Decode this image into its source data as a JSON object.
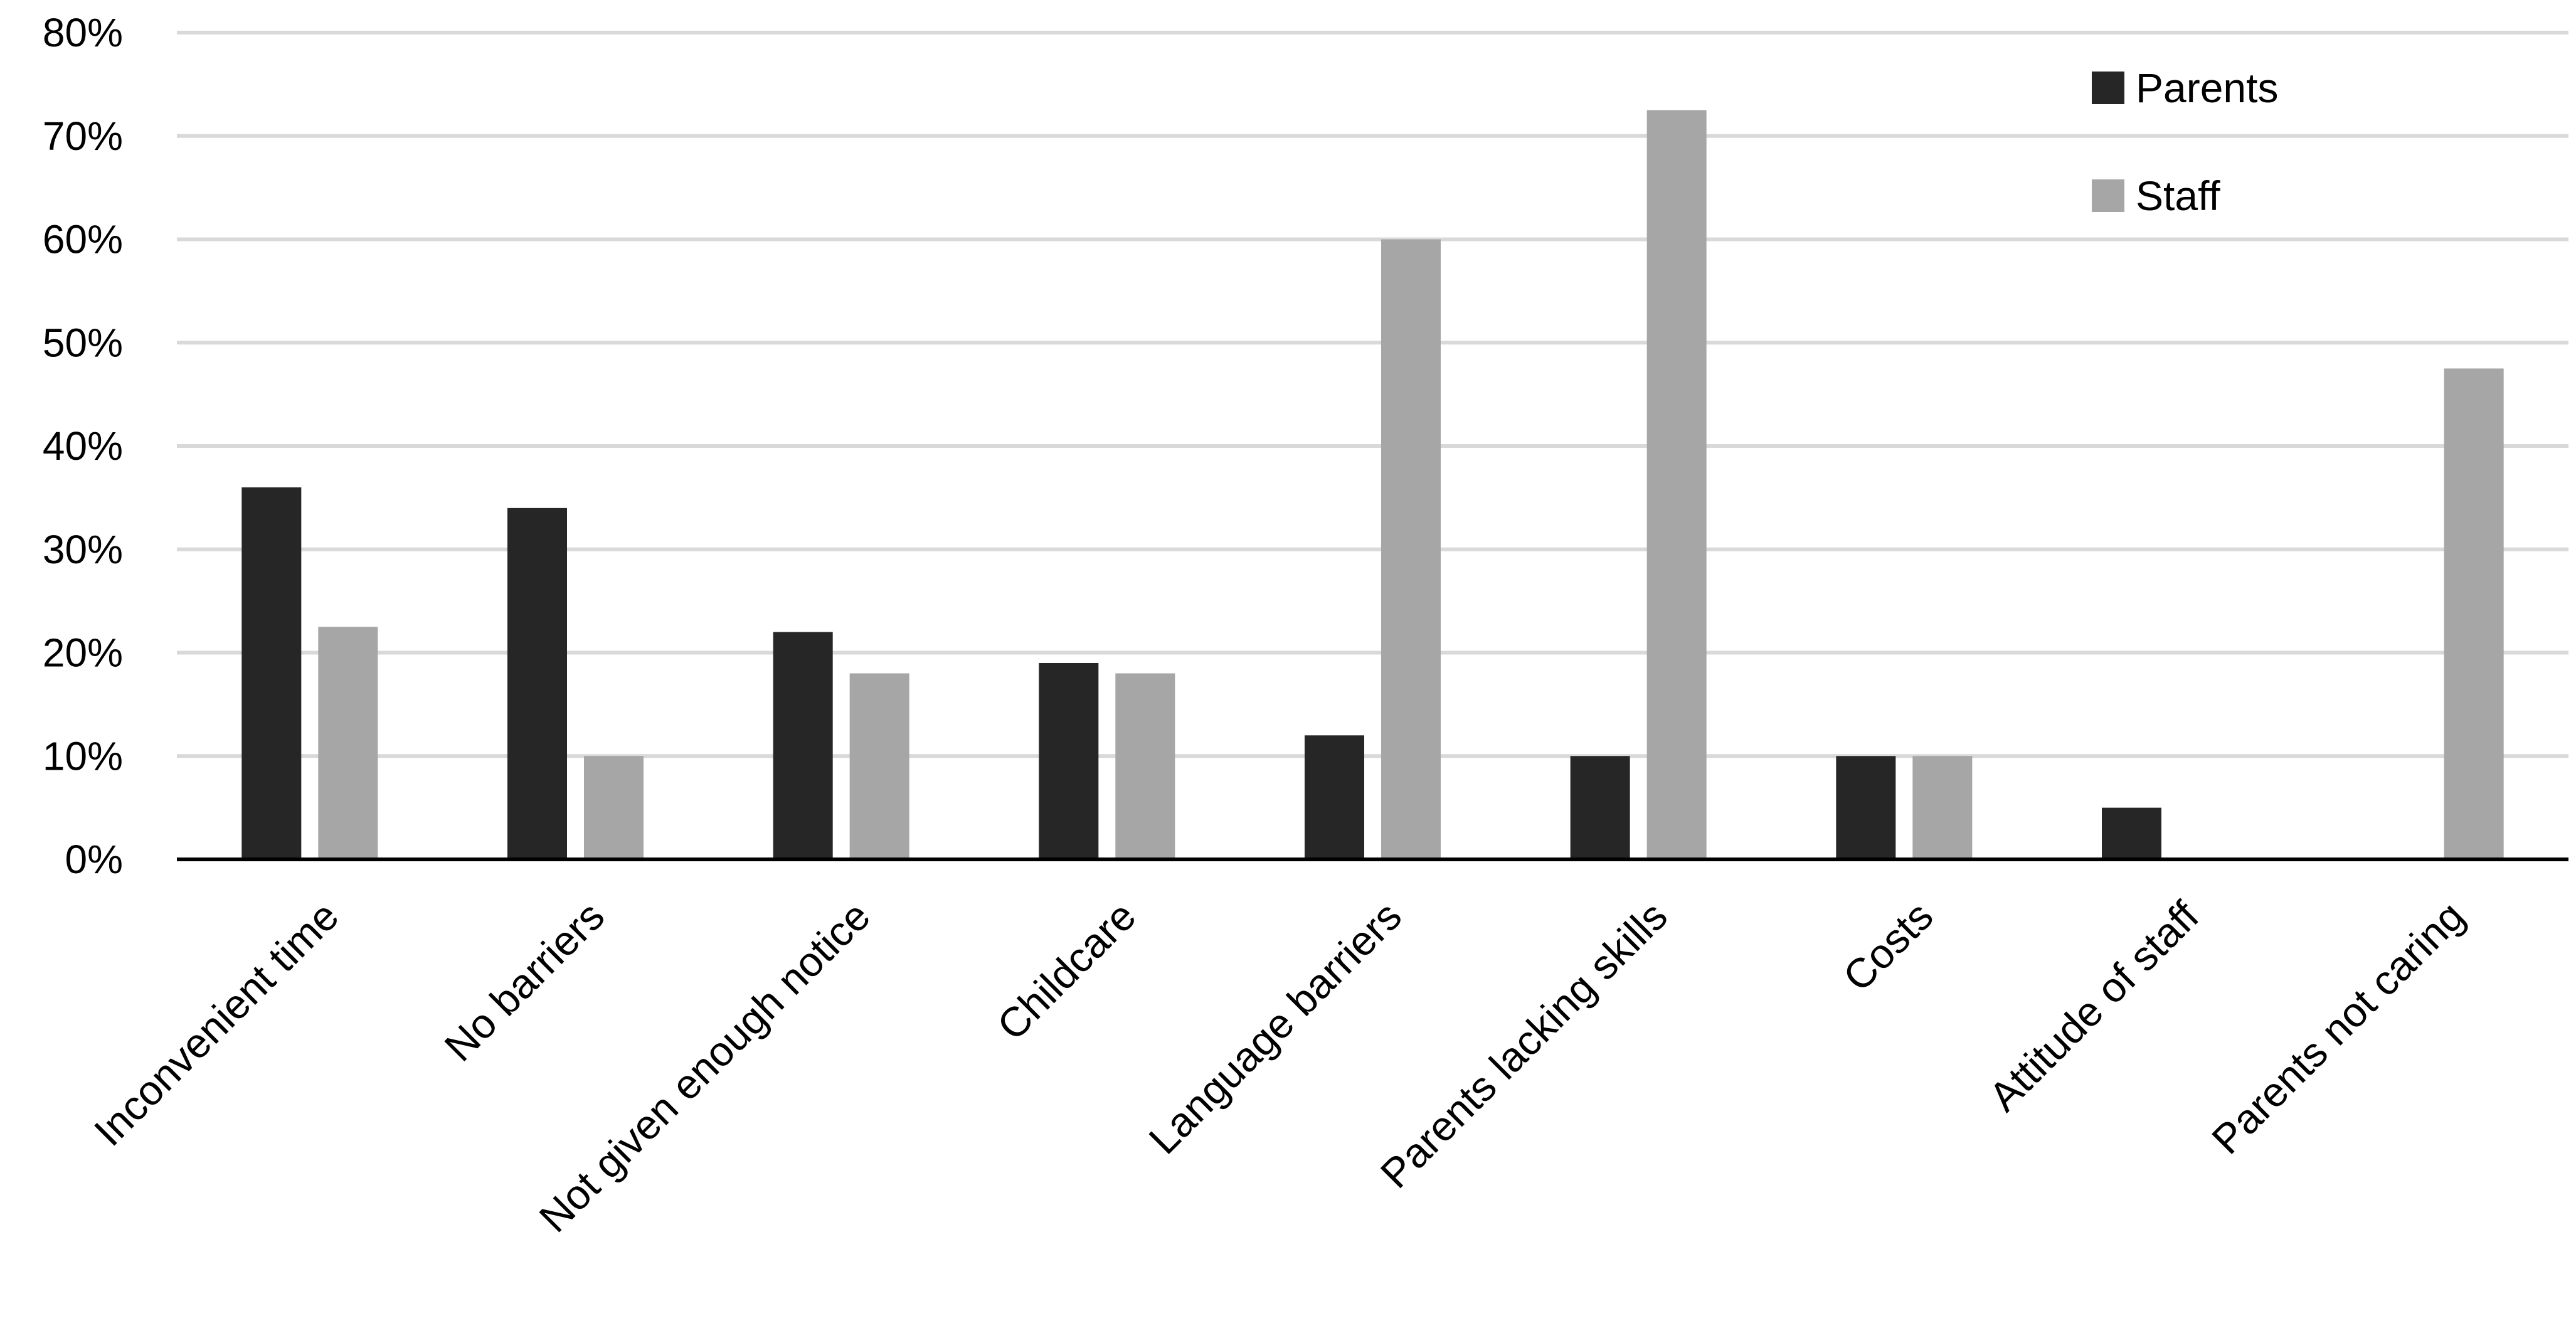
{
  "chart_data": {
    "type": "bar",
    "categories": [
      "Inconvenient time",
      "No barriers",
      "Not given enough notice",
      "Childcare",
      "Language barriers",
      "Parents lacking skills",
      "Costs",
      "Attitude of staff",
      "Parents not caring"
    ],
    "series": [
      {
        "name": "Parents",
        "color": "#262626",
        "values": [
          36,
          34,
          22,
          19,
          12,
          10,
          10,
          5,
          0
        ]
      },
      {
        "name": "Staff",
        "color": "#a6a6a6",
        "values": [
          22.5,
          10,
          18,
          18,
          60,
          72.5,
          10,
          0,
          47.5
        ]
      }
    ],
    "y_ticks": [
      "0%",
      "10%",
      "20%",
      "30%",
      "40%",
      "50%",
      "60%",
      "70%",
      "80%"
    ],
    "ylim": [
      0,
      80
    ],
    "grid": true,
    "legend_position": "top-right",
    "title": "",
    "xlabel": "",
    "ylabel": ""
  }
}
